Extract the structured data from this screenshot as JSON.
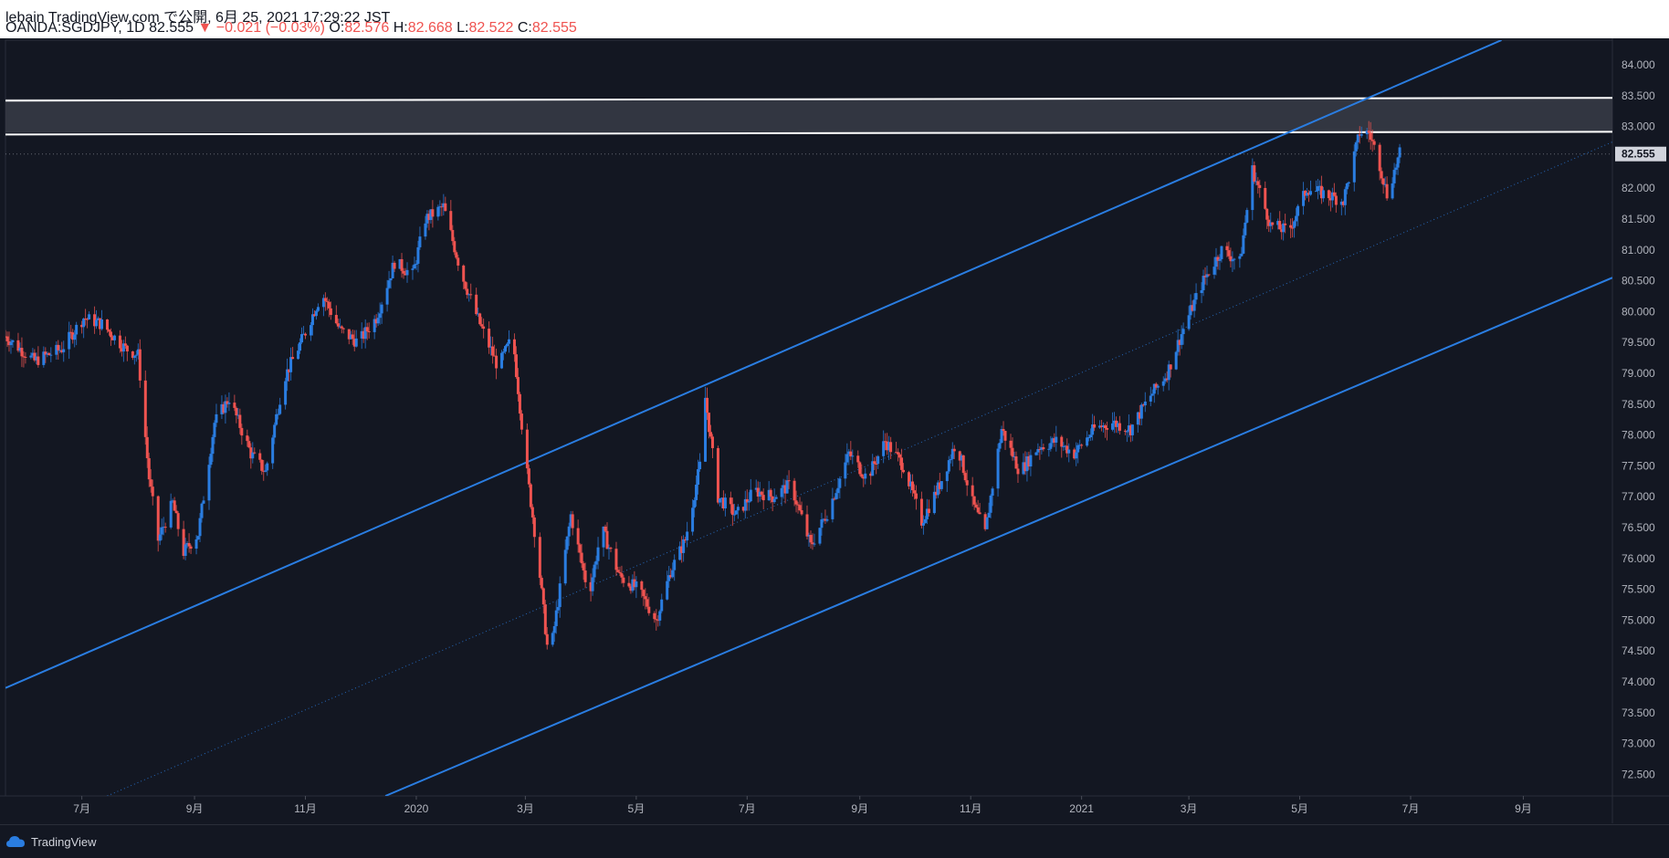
{
  "header": {
    "line1": "lebain TradingView.com で公開, 6月 25, 2021 17:29:22 JST",
    "symbol": "OANDA:SGDJPY, 1D 82.555",
    "change": "▼ −0.021 (−0.03%)",
    "o_label": "O:",
    "o_val": "82.576",
    "h_label": "H:",
    "h_val": "82.668",
    "l_label": "L:",
    "l_val": "82.522",
    "c_label": "C:",
    "c_val": "82.555"
  },
  "footer": {
    "brand": "TradingView"
  },
  "colors": {
    "background": "#131722",
    "up": "#2a7de1",
    "down": "#ef5350",
    "channel": "#2a7de1",
    "zone": "#ffffff",
    "grid": "#1e222d",
    "text": "#b2b5be",
    "price_tag": "#d1d4dc"
  },
  "chart_data": {
    "type": "candlestick",
    "symbol": "OANDA:SGDJPY",
    "interval": "1D",
    "ylim": [
      72.15,
      84.4
    ],
    "y_ticks": [
      "84.000",
      "83.500",
      "83.000",
      "82.500",
      "82.000",
      "81.500",
      "81.000",
      "80.500",
      "80.000",
      "79.500",
      "79.000",
      "78.500",
      "78.000",
      "77.500",
      "77.000",
      "76.500",
      "76.000",
      "75.500",
      "75.000",
      "74.500",
      "74.000",
      "73.500",
      "73.000",
      "72.500"
    ],
    "last_price": "82.555",
    "x_start": "2019-05-20",
    "x_end": "2021-10-20",
    "x_ticks": [
      {
        "date": "2019-07-01",
        "label": "7月"
      },
      {
        "date": "2019-09-01",
        "label": "9月"
      },
      {
        "date": "2019-11-01",
        "label": "11月"
      },
      {
        "date": "2020-01-01",
        "label": "2020"
      },
      {
        "date": "2020-03-01",
        "label": "3月"
      },
      {
        "date": "2020-05-01",
        "label": "5月"
      },
      {
        "date": "2020-07-01",
        "label": "7月"
      },
      {
        "date": "2020-09-01",
        "label": "9月"
      },
      {
        "date": "2020-11-01",
        "label": "11月"
      },
      {
        "date": "2021-01-01",
        "label": "2021"
      },
      {
        "date": "2021-03-01",
        "label": "3月"
      },
      {
        "date": "2021-05-01",
        "label": "5月"
      },
      {
        "date": "2021-07-01",
        "label": "7月"
      },
      {
        "date": "2021-09-01",
        "label": "9月"
      }
    ],
    "price_path": [
      [
        "2019-05-20",
        79.6
      ],
      [
        "2019-06-05",
        79.2
      ],
      [
        "2019-06-20",
        79.4
      ],
      [
        "2019-07-02",
        79.9
      ],
      [
        "2019-07-12",
        79.8
      ],
      [
        "2019-07-25",
        79.4
      ],
      [
        "2019-08-01",
        79.3
      ],
      [
        "2019-08-07",
        77.3
      ],
      [
        "2019-08-12",
        76.3
      ],
      [
        "2019-08-20",
        76.9
      ],
      [
        "2019-08-26",
        76.1
      ],
      [
        "2019-09-03",
        76.4
      ],
      [
        "2019-09-12",
        78.2
      ],
      [
        "2019-09-20",
        78.6
      ],
      [
        "2019-10-02",
        77.7
      ],
      [
        "2019-10-10",
        77.4
      ],
      [
        "2019-10-20",
        78.9
      ],
      [
        "2019-10-31",
        79.6
      ],
      [
        "2019-11-10",
        80.3
      ],
      [
        "2019-11-20",
        79.7
      ],
      [
        "2019-11-30",
        79.5
      ],
      [
        "2019-12-10",
        79.9
      ],
      [
        "2019-12-20",
        80.8
      ],
      [
        "2019-12-30",
        80.6
      ],
      [
        "2020-01-06",
        81.5
      ],
      [
        "2020-01-16",
        81.7
      ],
      [
        "2020-01-26",
        80.6
      ],
      [
        "2020-02-05",
        79.8
      ],
      [
        "2020-02-15",
        79.1
      ],
      [
        "2020-02-23",
        79.6
      ],
      [
        "2020-03-01",
        77.6
      ],
      [
        "2020-03-08",
        76.0
      ],
      [
        "2020-03-14",
        74.3
      ],
      [
        "2020-03-20",
        75.5
      ],
      [
        "2020-03-26",
        76.7
      ],
      [
        "2020-04-05",
        75.4
      ],
      [
        "2020-04-12",
        76.5
      ],
      [
        "2020-04-22",
        75.7
      ],
      [
        "2020-05-02",
        75.5
      ],
      [
        "2020-05-12",
        75.0
      ],
      [
        "2020-05-20",
        75.8
      ],
      [
        "2020-05-28",
        76.3
      ],
      [
        "2020-06-05",
        77.5
      ],
      [
        "2020-06-08",
        78.6
      ],
      [
        "2020-06-15",
        77.0
      ],
      [
        "2020-06-25",
        76.7
      ],
      [
        "2020-07-05",
        77.1
      ],
      [
        "2020-07-15",
        77.0
      ],
      [
        "2020-07-25",
        77.2
      ],
      [
        "2020-08-05",
        76.2
      ],
      [
        "2020-08-15",
        76.8
      ],
      [
        "2020-08-26",
        77.7
      ],
      [
        "2020-09-05",
        77.3
      ],
      [
        "2020-09-15",
        77.9
      ],
      [
        "2020-09-25",
        77.5
      ],
      [
        "2020-10-05",
        76.6
      ],
      [
        "2020-10-15",
        77.2
      ],
      [
        "2020-10-24",
        77.9
      ],
      [
        "2020-11-02",
        76.9
      ],
      [
        "2020-11-09",
        76.4
      ],
      [
        "2020-11-12",
        77.0
      ],
      [
        "2020-11-18",
        78.1
      ],
      [
        "2020-11-28",
        77.4
      ],
      [
        "2020-12-08",
        77.8
      ],
      [
        "2020-12-18",
        77.9
      ],
      [
        "2020-12-28",
        77.7
      ],
      [
        "2021-01-08",
        78.1
      ],
      [
        "2021-01-18",
        78.2
      ],
      [
        "2021-01-28",
        78.1
      ],
      [
        "2021-02-07",
        78.6
      ],
      [
        "2021-02-17",
        79.0
      ],
      [
        "2021-02-27",
        79.8
      ],
      [
        "2021-03-09",
        80.5
      ],
      [
        "2021-03-19",
        81.0
      ],
      [
        "2021-03-29",
        80.8
      ],
      [
        "2021-04-05",
        82.3
      ],
      [
        "2021-04-15",
        81.4
      ],
      [
        "2021-04-25",
        81.3
      ],
      [
        "2021-05-05",
        82.0
      ],
      [
        "2021-05-15",
        81.9
      ],
      [
        "2021-05-25",
        81.8
      ],
      [
        "2021-06-03",
        82.9
      ],
      [
        "2021-06-08",
        82.9
      ],
      [
        "2021-06-13",
        82.5
      ],
      [
        "2021-06-18",
        81.9
      ],
      [
        "2021-06-25",
        82.555
      ]
    ],
    "annotations": {
      "resistance_zone": {
        "top": 83.45,
        "bottom": 82.9
      },
      "channel_upper": [
        [
          "2019-05-20",
          73.9
        ],
        [
          "2021-08-20",
          84.4
        ]
      ],
      "channel_lower": [
        [
          "2019-12-15",
          72.15
        ],
        [
          "2021-10-20",
          80.55
        ]
      ],
      "channel_mid": [
        [
          "2019-07-15",
          72.15
        ],
        [
          "2021-10-20",
          82.75
        ]
      ]
    }
  }
}
